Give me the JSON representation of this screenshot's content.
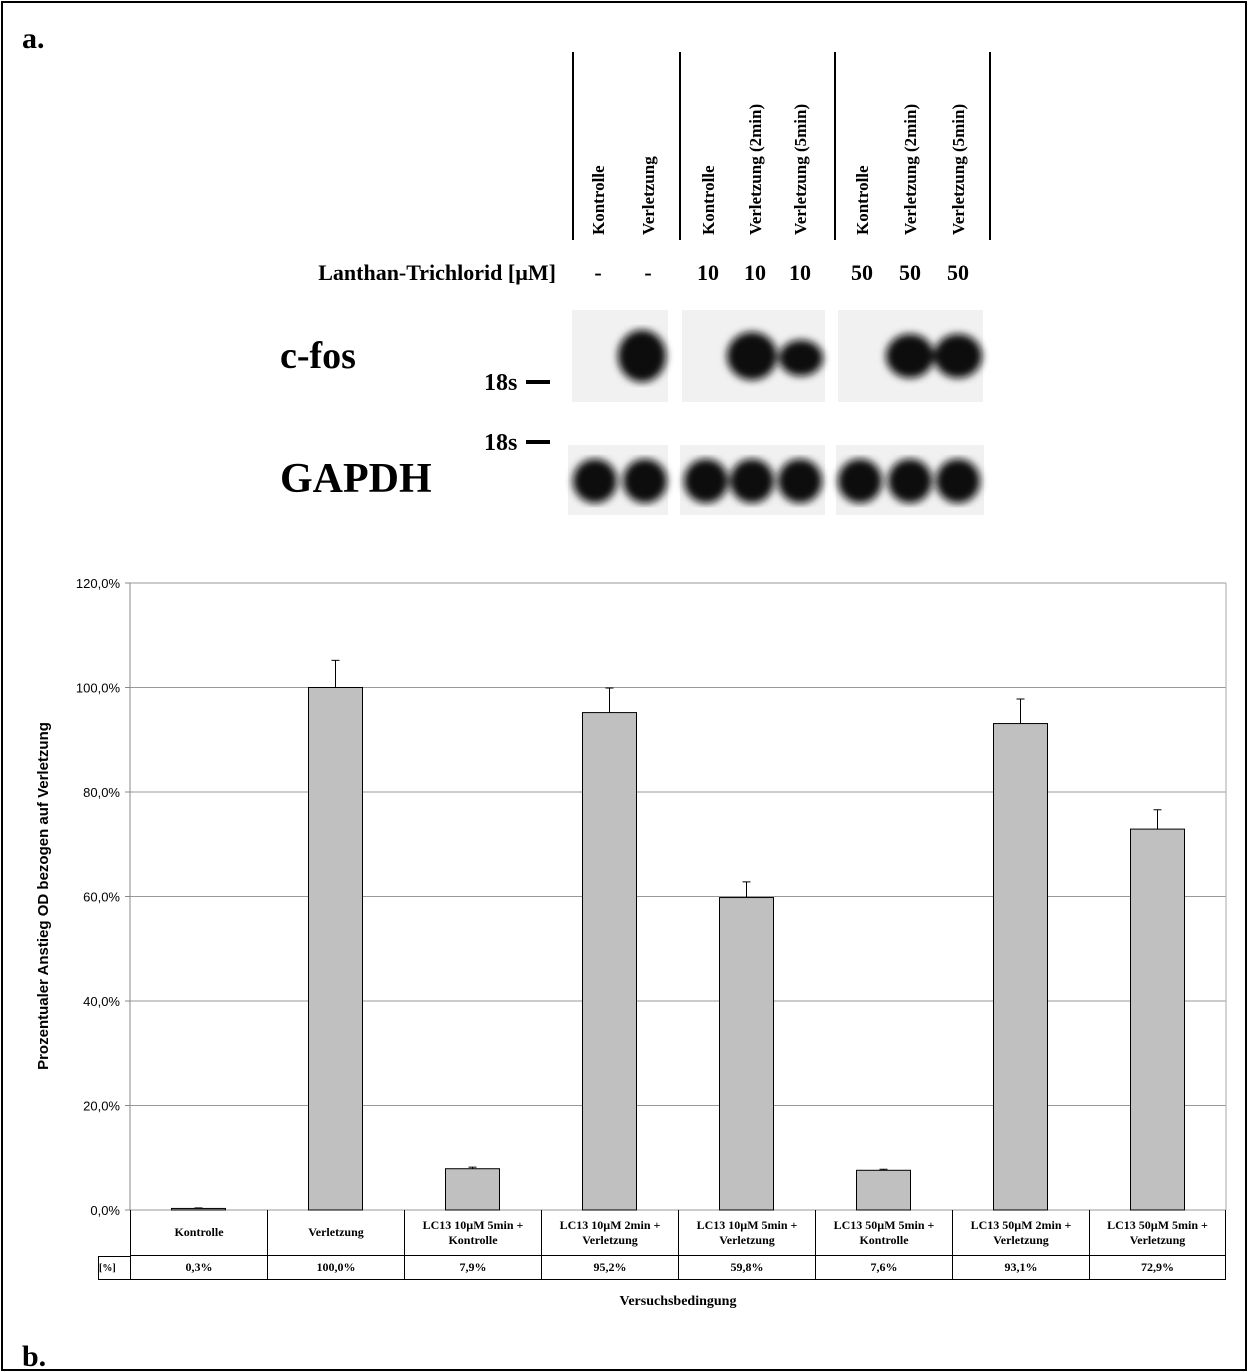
{
  "panel_labels": [
    "a.",
    "b."
  ],
  "blot": {
    "lanes": [
      "Kontrolle",
      "Verletzung",
      "Kontrolle",
      "Verletzung (2min)",
      "Verletzung (5min)",
      "Kontrolle",
      "Verletzung (2min)",
      "Verletzung (5min)"
    ],
    "concentration_label": "Lanthan-Trichlorid [µM]",
    "concentrations": [
      "-",
      "-",
      "10",
      "10",
      "10",
      "50",
      "50",
      "50"
    ],
    "rows": [
      "c-fos",
      "GAPDH"
    ],
    "marker": "18s"
  },
  "chart_data": {
    "type": "bar",
    "categories": [
      "Kontrolle",
      "Verletzung",
      "LC13 10µM 5min + Kontrolle",
      "LC13 10µM 2min + Verletzung",
      "LC13 10µM 5min + Verletzung",
      "LC13 50µM 5min + Kontrolle",
      "LC13 50µM 2min + Verletzung",
      "LC13 50µM 5min + Verletzung"
    ],
    "values": [
      0.3,
      100,
      7.9,
      95.2,
      59.8,
      7.6,
      93.1,
      72.9
    ],
    "value_labels": [
      "0,3%",
      "100,0%",
      "7,9%",
      "95,2%",
      "59,8%",
      "7,6%",
      "93,1%",
      "72,9%"
    ],
    "errors": [
      0.1,
      5.2,
      0.3,
      4.7,
      3.0,
      0.2,
      4.7,
      3.7
    ],
    "table_row_label": "[%]",
    "color": "#c0c0c0",
    "x_label": "Versuchsbedingung",
    "y_label": "Prozentualer Anstieg OD bezogen auf Verletzung",
    "ylim": [
      0,
      120
    ],
    "yticks": [
      {
        "value": 0,
        "label": "0,0%"
      },
      {
        "value": 20,
        "label": "20,0%"
      },
      {
        "value": 40,
        "label": "40,0%"
      },
      {
        "value": 60,
        "label": "60,0%"
      },
      {
        "value": 80,
        "label": "80,0%"
      },
      {
        "value": 100,
        "label": "100,0%"
      },
      {
        "value": 120,
        "label": "120,0%"
      }
    ],
    "grid": true
  }
}
